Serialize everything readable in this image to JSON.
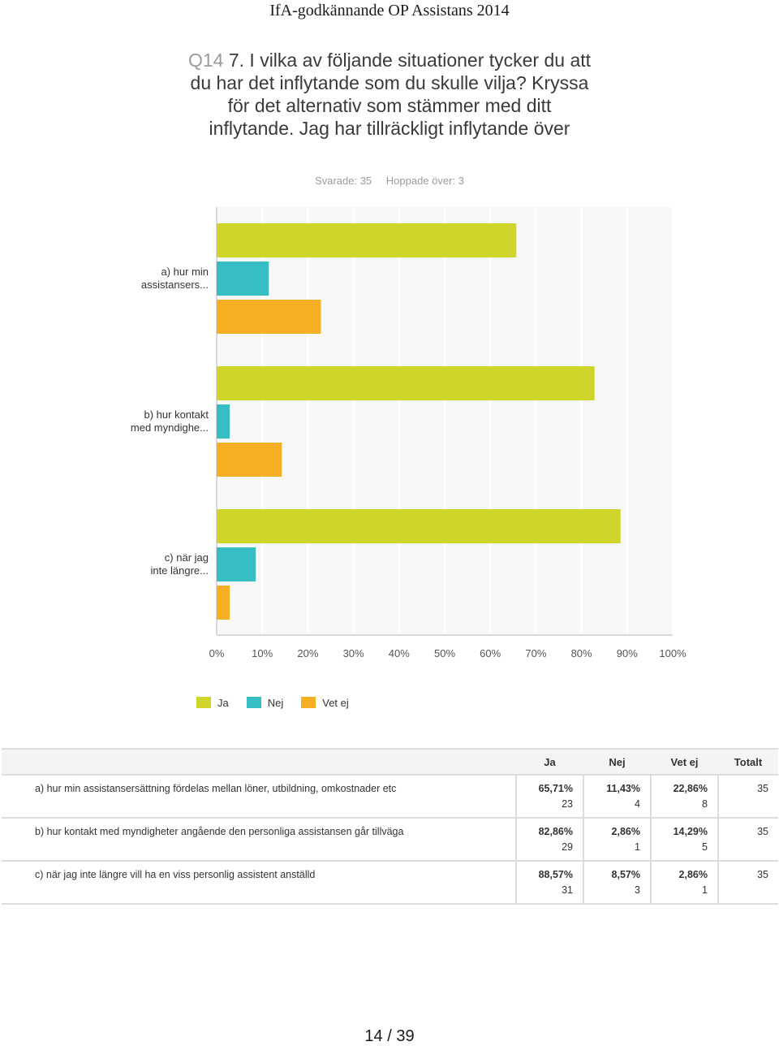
{
  "header": {
    "title": "IfA-godkännande OP Assistans 2014"
  },
  "question": {
    "number": "Q14",
    "text": "7. I vilka av följande situationer tycker du att du har det inflytande som du skulle vilja? Kryssa för det alternativ som stämmer med ditt inflytande. Jag har tillräckligt inflytande över"
  },
  "stats": {
    "answered": "Svarade: 35",
    "skipped": "Hoppade över: 3"
  },
  "chart_data": {
    "type": "bar",
    "orientation": "horizontal",
    "categories": [
      "a) hur min assistansers...",
      "b) hur kontakt med myndighe...",
      "c) när jag inte längre..."
    ],
    "category_lines": [
      [
        "a) hur min",
        "assistansers..."
      ],
      [
        "b) hur kontakt",
        "med myndighe..."
      ],
      [
        "c) när jag",
        "inte längre..."
      ]
    ],
    "series": [
      {
        "name": "Ja",
        "color": "#cfd52b",
        "values": [
          65.71,
          82.86,
          88.57
        ]
      },
      {
        "name": "Nej",
        "color": "#36bec2",
        "values": [
          11.43,
          2.86,
          8.57
        ]
      },
      {
        "name": "Vet ej",
        "color": "#f5af22",
        "values": [
          22.86,
          14.29,
          2.86
        ]
      }
    ],
    "xlim": [
      0,
      100
    ],
    "xticks": [
      "0%",
      "10%",
      "20%",
      "30%",
      "40%",
      "50%",
      "60%",
      "70%",
      "80%",
      "90%",
      "100%"
    ],
    "grid": true,
    "legend": "bottom"
  },
  "legend": [
    {
      "label": "Ja",
      "color": "#cfd52b"
    },
    {
      "label": "Nej",
      "color": "#36bec2"
    },
    {
      "label": "Vet ej",
      "color": "#f5af22"
    }
  ],
  "table": {
    "headers": [
      "Ja",
      "Nej",
      "Vet ej",
      "Totalt"
    ],
    "rows": [
      {
        "label": "a) hur min assistansersättning fördelas mellan löner, utbildning, omkostnader etc",
        "cells": [
          {
            "pct": "65,71%",
            "count": "23"
          },
          {
            "pct": "11,43%",
            "count": "4"
          },
          {
            "pct": "22,86%",
            "count": "8"
          }
        ],
        "total": "35"
      },
      {
        "label": "b) hur kontakt med myndigheter angående den personliga assistansen går tillväga",
        "cells": [
          {
            "pct": "82,86%",
            "count": "29"
          },
          {
            "pct": "2,86%",
            "count": "1"
          },
          {
            "pct": "14,29%",
            "count": "5"
          }
        ],
        "total": "35"
      },
      {
        "label": "c) när jag inte längre vill ha en viss personlig assistent anställd",
        "cells": [
          {
            "pct": "88,57%",
            "count": "31"
          },
          {
            "pct": "8,57%",
            "count": "3"
          },
          {
            "pct": "2,86%",
            "count": "1"
          }
        ],
        "total": "35"
      }
    ]
  },
  "footer": {
    "page": "14 / 39"
  }
}
